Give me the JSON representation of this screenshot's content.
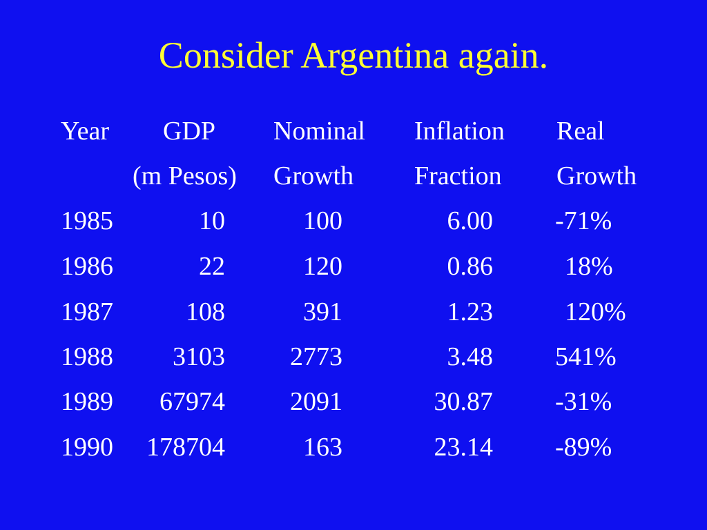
{
  "slide": {
    "title": "Consider Argentina again.",
    "headers": {
      "year": [
        "Year",
        ""
      ],
      "gdp": [
        "GDP",
        "(m Pesos)"
      ],
      "nominal": [
        "Nominal",
        "Growth"
      ],
      "inflation": [
        "Inflation",
        "Fraction"
      ],
      "real": [
        "Real",
        "Growth"
      ]
    },
    "rows": [
      {
        "year": "1985",
        "gdp": "10",
        "nominal": "100",
        "inflation": "6.00",
        "real": "-71%"
      },
      {
        "year": "1986",
        "gdp": "22",
        "nominal": "120",
        "inflation": "0.86",
        "real": " 18%"
      },
      {
        "year": "1987",
        "gdp": "108",
        "nominal": "391",
        "inflation": "1.23",
        "real": " 120%"
      },
      {
        "year": "1988",
        "gdp": "3103",
        "nominal": "2773",
        "inflation": "3.48",
        "real": "541%"
      },
      {
        "year": "1989",
        "gdp": "67974",
        "nominal": "2091",
        "inflation": "30.87",
        "real": "-31%"
      },
      {
        "year": "1990",
        "gdp": "178704",
        "nominal": "163",
        "inflation": "23.14",
        "real": "-89%"
      }
    ]
  },
  "colors": {
    "background": "#0f10f0",
    "title": "#ffff33",
    "text": "#ffffff"
  }
}
